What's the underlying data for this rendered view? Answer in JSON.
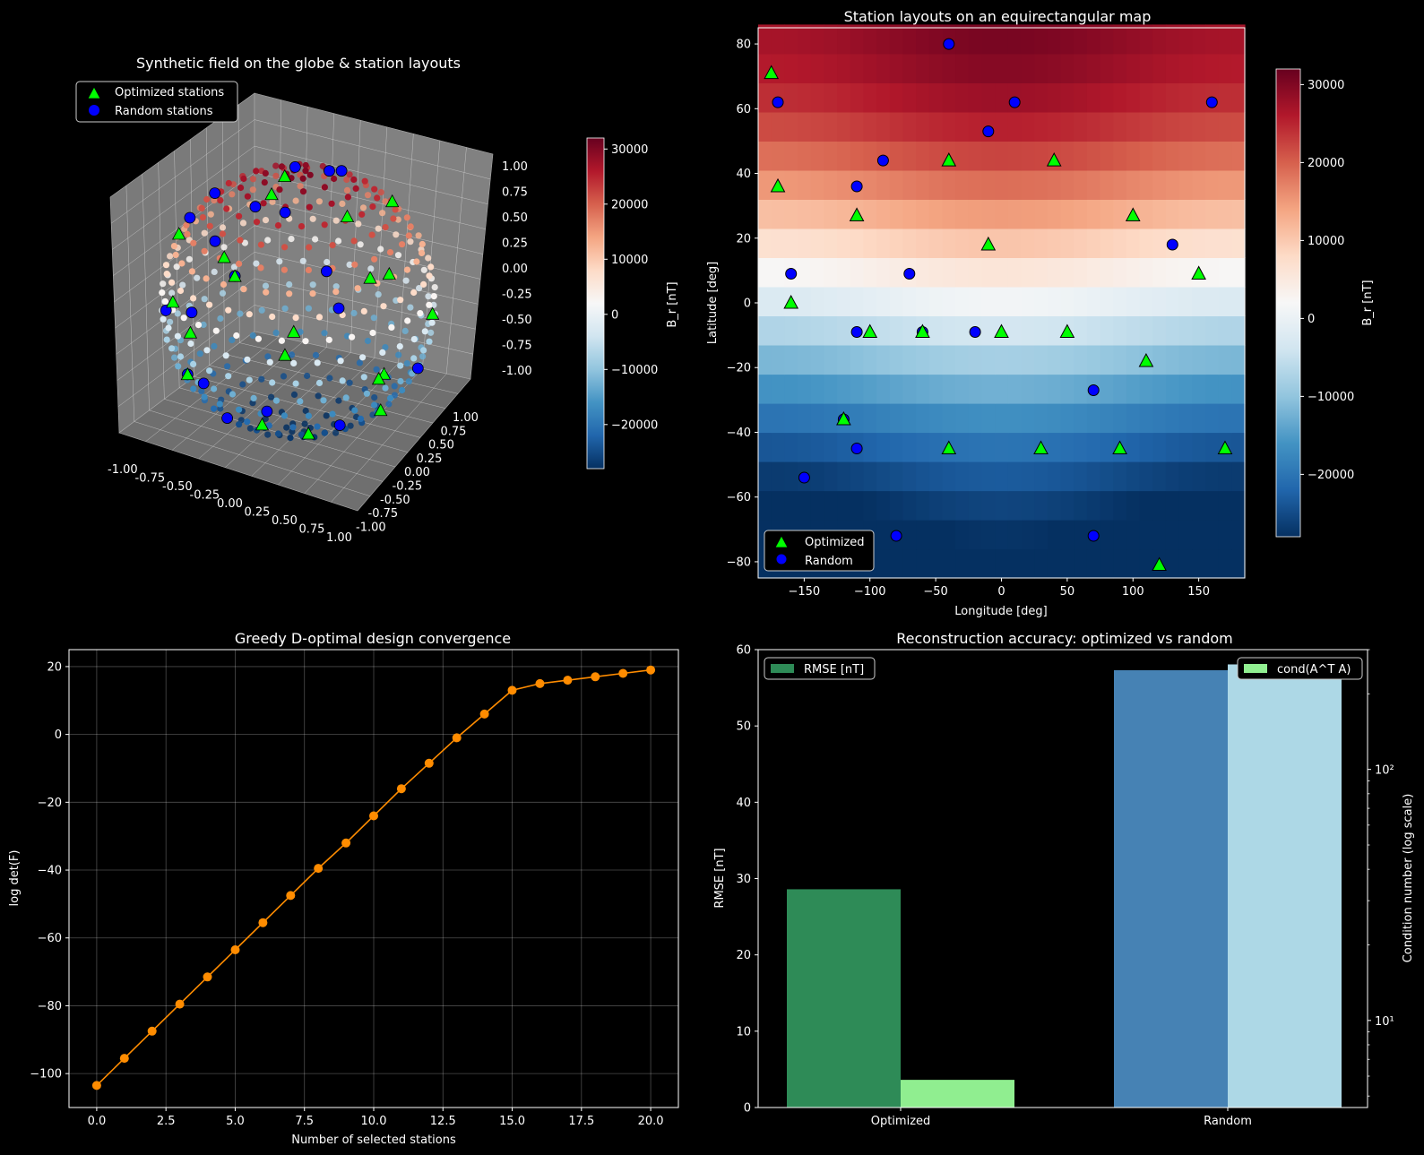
{
  "chart_data": [
    {
      "type": "scatter3d",
      "title": "Synthetic field on the globe & station layouts",
      "legend": [
        "Optimized stations",
        "Random stations"
      ],
      "legend_position": "upper-left",
      "axis_ticks": [
        "-1.00",
        "-0.75",
        "-0.50",
        "-0.25",
        "0.00",
        "0.25",
        "0.50",
        "0.75",
        "1.00"
      ],
      "colorbar": {
        "label": "B_r [nT]",
        "ticks": [
          "30000",
          "20000",
          "10000",
          "0",
          "−10000",
          "−20000"
        ],
        "range": [
          -28000,
          32000
        ]
      },
      "colormap": "RdBu_r"
    },
    {
      "type": "heatmap",
      "title": "Station layouts on an equirectangular map",
      "xlabel": "Longitude [deg]",
      "ylabel": "Latitude [deg]",
      "xlim": [
        -185,
        185
      ],
      "ylim": [
        -85,
        85
      ],
      "xticks": [
        "−150",
        "−100",
        "−50",
        "0",
        "50",
        "100",
        "150"
      ],
      "yticks": [
        "80",
        "60",
        "40",
        "20",
        "0",
        "−20",
        "−40",
        "−60",
        "−80"
      ],
      "colorbar": {
        "label": "B_r [nT]",
        "ticks": [
          "30000",
          "20000",
          "10000",
          "0",
          "−10000",
          "−20000"
        ],
        "range": [
          -28000,
          32000
        ]
      },
      "legend": [
        "Optimized",
        "Random"
      ],
      "legend_position": "lower-left",
      "optimized_stations": [
        [
          -175,
          71
        ],
        [
          -170,
          36
        ],
        [
          -160,
          0
        ],
        [
          -110,
          27
        ],
        [
          -100,
          -9
        ],
        [
          -120,
          -36
        ],
        [
          -60,
          -9
        ],
        [
          -40,
          44
        ],
        [
          -40,
          -45
        ],
        [
          -10,
          18
        ],
        [
          0,
          -9
        ],
        [
          30,
          -45
        ],
        [
          40,
          44
        ],
        [
          50,
          -9
        ],
        [
          90,
          -45
        ],
        [
          100,
          27
        ],
        [
          110,
          -18
        ],
        [
          120,
          -81
        ],
        [
          150,
          9
        ],
        [
          170,
          -45
        ]
      ],
      "random_stations": [
        [
          -170,
          62
        ],
        [
          -160,
          9
        ],
        [
          -150,
          -54
        ],
        [
          -120,
          -36
        ],
        [
          -110,
          36
        ],
        [
          -110,
          -9
        ],
        [
          -110,
          -45
        ],
        [
          -90,
          44
        ],
        [
          -80,
          -72
        ],
        [
          -70,
          9
        ],
        [
          -60,
          -9
        ],
        [
          -40,
          80
        ],
        [
          -20,
          -9
        ],
        [
          -10,
          53
        ],
        [
          10,
          62
        ],
        [
          70,
          -27
        ],
        [
          70,
          -72
        ],
        [
          130,
          18
        ],
        [
          160,
          62
        ]
      ]
    },
    {
      "type": "line",
      "title": "Greedy D-optimal design convergence",
      "xlabel": "Number of selected stations",
      "ylabel": "log det(F)",
      "xlim": [
        -1,
        21
      ],
      "ylim": [
        -110,
        25
      ],
      "xticks": [
        "0.0",
        "2.5",
        "5.0",
        "7.5",
        "10.0",
        "12.5",
        "15.0",
        "17.5",
        "20.0"
      ],
      "yticks": [
        "20",
        "0",
        "−20",
        "−40",
        "−60",
        "−80",
        "−100"
      ],
      "grid": true,
      "x": [
        0,
        1,
        2,
        3,
        4,
        5,
        6,
        7,
        8,
        9,
        10,
        11,
        12,
        13,
        14,
        15,
        16,
        17,
        18,
        19,
        20
      ],
      "y": [
        -103.5,
        -95.5,
        -87.5,
        -79.5,
        -71.5,
        -63.5,
        -55.5,
        -47.5,
        -39.5,
        -32,
        -24,
        -16,
        -8.5,
        -1,
        6,
        13,
        15,
        16,
        17,
        18,
        19
      ]
    },
    {
      "type": "bar",
      "title": "Reconstruction accuracy: optimized vs random",
      "categories": [
        "Optimized",
        "Random"
      ],
      "ylabel": "RMSE [nT]",
      "ylabel2": "Condition number (log scale)",
      "ylim": [
        0,
        60
      ],
      "yticks": [
        "0",
        "10",
        "20",
        "30",
        "40",
        "50",
        "60"
      ],
      "y2_log": true,
      "y2lim": [
        4.5,
        300
      ],
      "y2ticks": [
        "10¹",
        "10²"
      ],
      "series": [
        {
          "name": "RMSE [nT]",
          "values": [
            28.6,
            57.3
          ],
          "axis": "left",
          "colors": [
            "#2e8b57",
            "#4682b4"
          ]
        },
        {
          "name": "cond(A^T A)",
          "values": [
            5.8,
            262
          ],
          "axis": "right",
          "colors": [
            "#90ee90",
            "#add8e6"
          ]
        }
      ]
    }
  ]
}
